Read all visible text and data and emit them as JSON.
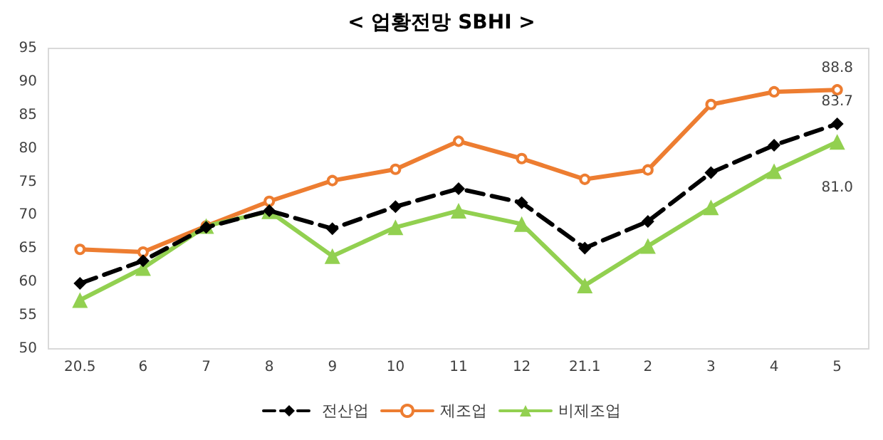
{
  "chart_data": {
    "type": "line",
    "title": "< 업황전망 SBHI >",
    "categories": [
      "20.5",
      "6",
      "7",
      "8",
      "9",
      "10",
      "11",
      "12",
      "21.1",
      "2",
      "3",
      "4",
      "5"
    ],
    "series": [
      {
        "name": "전산업",
        "color": "#000000",
        "marker": "diamond",
        "line_style": "dashed",
        "values": [
          59.8,
          63.2,
          68.2,
          70.7,
          68.0,
          71.3,
          74.0,
          71.9,
          65.1,
          69.1,
          76.4,
          80.5,
          83.7
        ],
        "value_labels": [
          null,
          null,
          null,
          null,
          null,
          null,
          null,
          null,
          null,
          null,
          null,
          null,
          "83.7"
        ]
      },
      {
        "name": "제조업",
        "color": "#ed7d31",
        "marker": "circle",
        "line_style": "solid",
        "values": [
          64.9,
          64.5,
          68.4,
          72.1,
          75.2,
          76.9,
          81.1,
          78.5,
          75.4,
          76.8,
          86.6,
          88.5,
          88.8
        ],
        "value_labels": [
          null,
          null,
          null,
          null,
          null,
          null,
          null,
          null,
          null,
          null,
          null,
          null,
          "88.8"
        ]
      },
      {
        "name": "비제조업",
        "color": "#92d050",
        "marker": "triangle",
        "line_style": "solid",
        "values": [
          57.3,
          62.1,
          68.4,
          70.6,
          63.9,
          68.2,
          70.7,
          68.7,
          59.5,
          65.4,
          71.2,
          76.6,
          81.0
        ],
        "value_labels": [
          null,
          null,
          null,
          null,
          null,
          null,
          null,
          null,
          null,
          null,
          null,
          null,
          "81.0"
        ]
      }
    ],
    "ylim": [
      50,
      95
    ],
    "yticks": [
      50,
      55,
      60,
      65,
      70,
      75,
      80,
      85,
      90,
      95
    ],
    "grid": false,
    "legend": "bottom"
  }
}
